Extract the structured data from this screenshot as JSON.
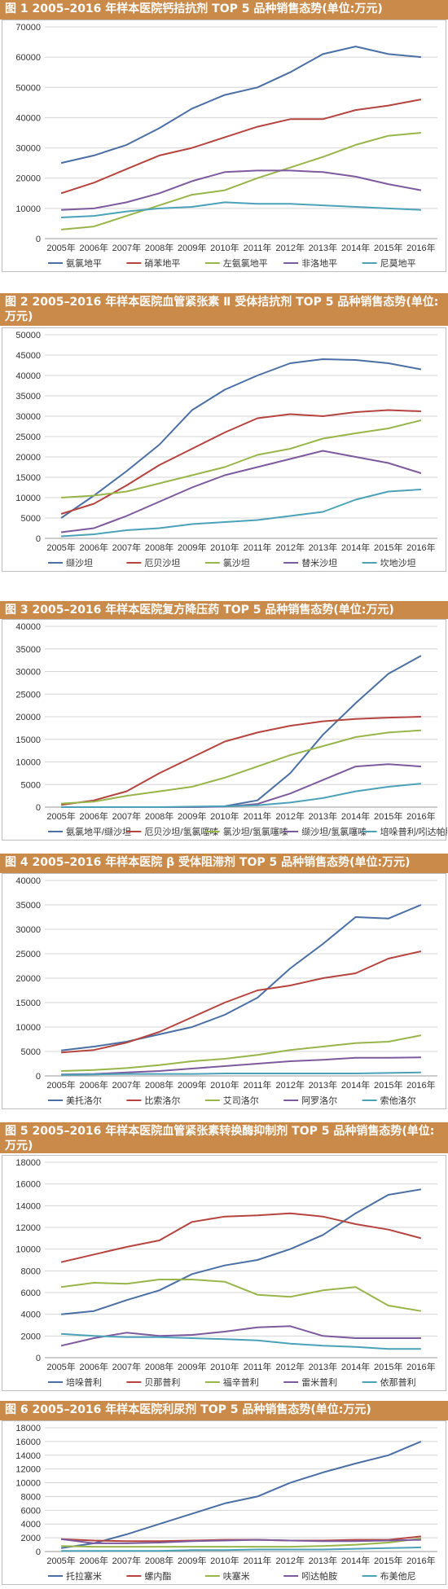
{
  "chart_data": [
    {
      "type": "line",
      "title": "图 1 2005–2016 年样本医院钙拮抗剂 TOP 5 品种销售态势(单位:万元)",
      "categories": [
        "2005年",
        "2006年",
        "2007年",
        "2008年",
        "2009年",
        "2010年",
        "2011年",
        "2012年",
        "2013年",
        "2014年",
        "2015年",
        "2016年"
      ],
      "ylim": [
        0,
        70000
      ],
      "yticks": [
        0,
        10000,
        20000,
        30000,
        40000,
        50000,
        60000,
        70000
      ],
      "series": [
        {
          "name": "氨氯地平",
          "color": "#4a6fa5",
          "values": [
            25000,
            27500,
            31000,
            36500,
            43000,
            47500,
            50000,
            55000,
            61000,
            63500,
            61000,
            60000
          ]
        },
        {
          "name": "硝苯地平",
          "color": "#b5443f",
          "values": [
            15000,
            18500,
            23000,
            27500,
            30000,
            33500,
            37000,
            39500,
            39500,
            42500,
            44000,
            46000
          ]
        },
        {
          "name": "左氨氯地平",
          "color": "#98b54a",
          "values": [
            3000,
            4000,
            7500,
            11000,
            14500,
            16000,
            20000,
            23500,
            27000,
            31000,
            34000,
            35000
          ]
        },
        {
          "name": "非洛地平",
          "color": "#7d5a9e",
          "values": [
            9500,
            10000,
            12000,
            15000,
            19000,
            22000,
            22500,
            22500,
            22000,
            20500,
            18000,
            16000
          ]
        },
        {
          "name": "尼莫地平",
          "color": "#4ba2b8",
          "values": [
            7000,
            7500,
            9000,
            10000,
            10500,
            12000,
            11500,
            11500,
            11000,
            10500,
            10000,
            9500
          ]
        }
      ]
    },
    {
      "type": "line",
      "title": "图 2 2005–2016 年样本医院血管紧张素 Ⅱ 受体拮抗剂 TOP 5 品种销售态势(单位:万元)",
      "categories": [
        "2005年",
        "2006年",
        "2007年",
        "2008年",
        "2009年",
        "2010年",
        "2011年",
        "2012年",
        "2013年",
        "2014年",
        "2015年",
        "2016年"
      ],
      "ylim": [
        0,
        50000
      ],
      "yticks": [
        0,
        5000,
        10000,
        15000,
        20000,
        25000,
        30000,
        35000,
        40000,
        45000,
        50000
      ],
      "series": [
        {
          "name": "缬沙坦",
          "color": "#4a6fa5",
          "values": [
            5000,
            10500,
            16500,
            23000,
            31500,
            36500,
            40000,
            43000,
            44000,
            43800,
            43000,
            41500
          ]
        },
        {
          "name": "厄贝沙坦",
          "color": "#b5443f",
          "values": [
            6000,
            8500,
            13000,
            18000,
            22000,
            26000,
            29500,
            30500,
            30000,
            31000,
            31500,
            31200
          ]
        },
        {
          "name": "氯沙坦",
          "color": "#98b54a",
          "values": [
            10000,
            10500,
            11500,
            13500,
            15500,
            17500,
            20500,
            22000,
            24500,
            25800,
            27000,
            29000
          ]
        },
        {
          "name": "替米沙坦",
          "color": "#7d5a9e",
          "values": [
            1500,
            2500,
            5500,
            9000,
            12500,
            15500,
            17500,
            19500,
            21500,
            20000,
            18500,
            16000
          ]
        },
        {
          "name": "坎地沙坦",
          "color": "#4ba2b8",
          "values": [
            500,
            1000,
            2000,
            2500,
            3500,
            4000,
            4500,
            5500,
            6500,
            9500,
            11500,
            12000
          ]
        }
      ]
    },
    {
      "type": "line",
      "title": "图 3 2005–2016 年样本医院复方降压药 TOP 5 品种销售态势(单位:万元)",
      "categories": [
        "2005年",
        "2006年",
        "2007年",
        "2008年",
        "2009年",
        "2010年",
        "2011年",
        "2012年",
        "2013年",
        "2014年",
        "2015年",
        "2016年"
      ],
      "ylim": [
        0,
        40000
      ],
      "yticks": [
        0,
        5000,
        10000,
        15000,
        20000,
        25000,
        30000,
        35000,
        40000
      ],
      "series": [
        {
          "name": "氨氯地平/缬沙坦",
          "color": "#4a6fa5",
          "values": [
            0,
            0,
            0,
            0,
            0,
            200,
            1500,
            7500,
            16000,
            23000,
            29500,
            33500
          ]
        },
        {
          "name": "厄贝沙坦/氢氯噻嗪",
          "color": "#b5443f",
          "values": [
            500,
            1500,
            3500,
            7500,
            11000,
            14500,
            16500,
            18000,
            19000,
            19500,
            19800,
            20000
          ]
        },
        {
          "name": "氯沙坦/氢氯噻嗪",
          "color": "#98b54a",
          "values": [
            800,
            1200,
            2500,
            3500,
            4500,
            6500,
            9000,
            11500,
            13500,
            15500,
            16500,
            17000
          ]
        },
        {
          "name": "缬沙坦/氢氯噻嗪",
          "color": "#7d5a9e",
          "values": [
            0,
            0,
            0,
            0,
            0,
            100,
            700,
            3000,
            6000,
            9000,
            9500,
            9000
          ]
        },
        {
          "name": "培哚普利/吲达帕胺",
          "color": "#4ba2b8",
          "values": [
            0,
            0,
            0,
            0,
            100,
            200,
            400,
            1000,
            2000,
            3500,
            4500,
            5200
          ]
        }
      ]
    },
    {
      "type": "line",
      "title": "图 4 2005–2016 年样本医院 β 受体阻滞剂 TOP 5 品种销售态势(单位:万元)",
      "categories": [
        "2005年",
        "2006年",
        "2007年",
        "2008年",
        "2009年",
        "2010年",
        "2011年",
        "2012年",
        "2013年",
        "2014年",
        "2015年",
        "2016年"
      ],
      "ylim": [
        0,
        40000
      ],
      "yticks": [
        0,
        5000,
        10000,
        15000,
        20000,
        25000,
        30000,
        35000,
        40000
      ],
      "series": [
        {
          "name": "美托洛尔",
          "color": "#4a6fa5",
          "values": [
            5200,
            6000,
            7000,
            8500,
            10000,
            12500,
            16000,
            22000,
            27000,
            32500,
            32200,
            35000
          ]
        },
        {
          "name": "比索洛尔",
          "color": "#b5443f",
          "values": [
            4800,
            5300,
            6800,
            9000,
            12000,
            15000,
            17500,
            18500,
            20000,
            21000,
            24000,
            25500
          ]
        },
        {
          "name": "艾司洛尔",
          "color": "#98b54a",
          "values": [
            1000,
            1200,
            1600,
            2200,
            3000,
            3500,
            4300,
            5300,
            6000,
            6700,
            7000,
            8300
          ]
        },
        {
          "name": "阿罗洛尔",
          "color": "#7d5a9e",
          "values": [
            300,
            400,
            700,
            1000,
            1500,
            2000,
            2500,
            3000,
            3300,
            3700,
            3700,
            3800
          ]
        },
        {
          "name": "索他洛尔",
          "color": "#4ba2b8",
          "values": [
            200,
            300,
            400,
            400,
            400,
            500,
            500,
            500,
            500,
            500,
            600,
            700
          ]
        }
      ]
    },
    {
      "type": "line",
      "title": "图 5 2005–2016 年样本医院血管紧张素转换酶抑制剂 TOP 5 品种销售态势(单位:万元)",
      "categories": [
        "2005年",
        "2006年",
        "2007年",
        "2008年",
        "2009年",
        "2010年",
        "2011年",
        "2012年",
        "2013年",
        "2014年",
        "2015年",
        "2016年"
      ],
      "ylim": [
        0,
        18000
      ],
      "yticks": [
        0,
        2000,
        4000,
        6000,
        8000,
        10000,
        12000,
        14000,
        16000,
        18000
      ],
      "series": [
        {
          "name": "培哚普利",
          "color": "#4a6fa5",
          "values": [
            4000,
            4300,
            5300,
            6200,
            7700,
            8500,
            9000,
            10000,
            11300,
            13300,
            15000,
            15500
          ]
        },
        {
          "name": "贝那普利",
          "color": "#b5443f",
          "values": [
            8800,
            9500,
            10200,
            10800,
            12500,
            13000,
            13100,
            13300,
            13000,
            12300,
            11800,
            11000
          ]
        },
        {
          "name": "福辛普利",
          "color": "#98b54a",
          "values": [
            6500,
            6900,
            6800,
            7200,
            7200,
            7000,
            5800,
            5600,
            6200,
            6500,
            4800,
            4300
          ]
        },
        {
          "name": "雷米普利",
          "color": "#7d5a9e",
          "values": [
            1100,
            1800,
            2300,
            2000,
            2100,
            2400,
            2800,
            2900,
            2000,
            1800,
            1800,
            1800
          ]
        },
        {
          "name": "依那普利",
          "color": "#4ba2b8",
          "values": [
            2200,
            2000,
            1900,
            1900,
            1800,
            1700,
            1600,
            1300,
            1100,
            1000,
            800,
            800
          ]
        }
      ]
    },
    {
      "type": "line",
      "title": "图 6 2005–2016 年样本医院利尿剂 TOP 5 品种销售态势(单位:万元)",
      "categories": [
        "2005年",
        "2006年",
        "2007年",
        "2008年",
        "2009年",
        "2010年",
        "2011年",
        "2012年",
        "2013年",
        "2014年",
        "2015年",
        "2016年"
      ],
      "ylim": [
        0,
        18000
      ],
      "yticks": [
        0,
        2000,
        4000,
        6000,
        8000,
        10000,
        12000,
        14000,
        16000,
        18000
      ],
      "series": [
        {
          "name": "托拉塞米",
          "color": "#4a6fa5",
          "values": [
            500,
            1200,
            2500,
            4000,
            5500,
            7000,
            8000,
            10000,
            11500,
            12800,
            14000,
            16000
          ]
        },
        {
          "name": "螺内酯",
          "color": "#b5443f",
          "values": [
            1800,
            1600,
            1500,
            1500,
            1600,
            1700,
            1700,
            1600,
            1600,
            1700,
            1700,
            2200
          ]
        },
        {
          "name": "呋塞米",
          "color": "#98b54a",
          "values": [
            800,
            700,
            700,
            700,
            700,
            700,
            700,
            700,
            800,
            1000,
            1300,
            1900
          ]
        },
        {
          "name": "吲达帕胺",
          "color": "#7d5a9e",
          "values": [
            1800,
            1200,
            1200,
            1300,
            1500,
            1600,
            1700,
            1600,
            1500,
            1500,
            1600,
            1700
          ]
        },
        {
          "name": "布美他尼",
          "color": "#4ba2b8",
          "values": [
            100,
            100,
            100,
            100,
            200,
            200,
            300,
            300,
            300,
            400,
            500,
            600
          ]
        }
      ]
    }
  ]
}
